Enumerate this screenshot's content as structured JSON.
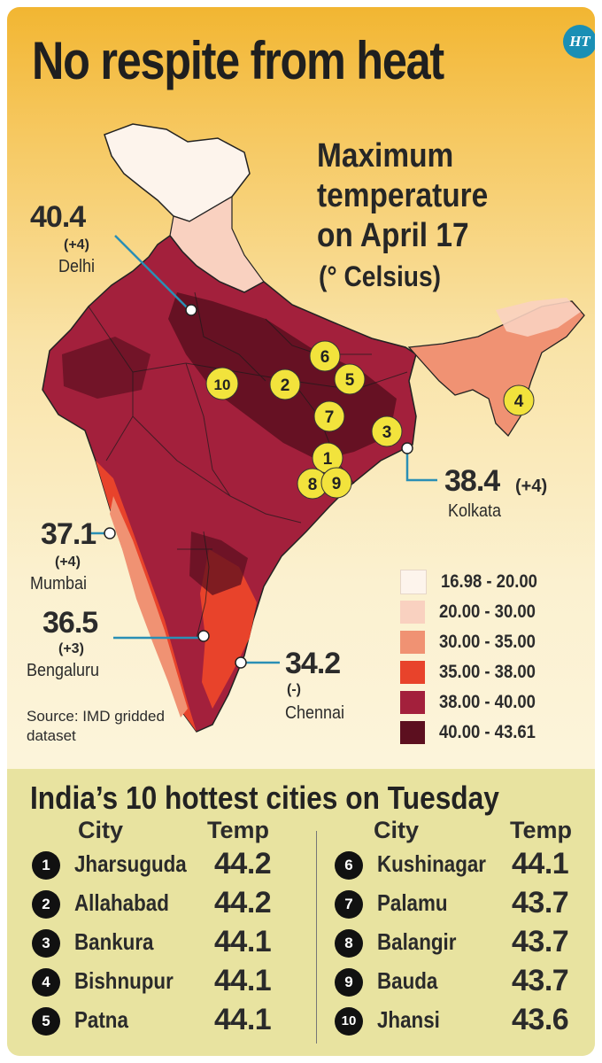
{
  "title": "No respite from heat",
  "logo": "HT",
  "subtitle": "Maximum\ntemperature\non April 17",
  "unit": "(° Celsius)",
  "cities": [
    {
      "value": "40.4",
      "change": "(+4)",
      "name": "Delhi"
    },
    {
      "value": "38.4",
      "change": "(+4)",
      "name": "Kolkata"
    },
    {
      "value": "37.1",
      "change": "(+4)",
      "name": "Mumbai"
    },
    {
      "value": "36.5",
      "change": "(+3)",
      "name": "Bengaluru"
    },
    {
      "value": "34.2",
      "change": "(-)",
      "name": "Chennai"
    }
  ],
  "markers": [
    "6",
    "5",
    "10",
    "2",
    "7",
    "3",
    "1",
    "8",
    "9",
    "4"
  ],
  "source": "Source: IMD gridded dataset",
  "legend": [
    {
      "label": "16.98 - 20.00",
      "color": "#fdf4ec"
    },
    {
      "label": "20.00 - 30.00",
      "color": "#f9d1c0"
    },
    {
      "label": "30.00 - 35.00",
      "color": "#f09273"
    },
    {
      "label": "35.00 - 38.00",
      "color": "#e8432b"
    },
    {
      "label": "38.00 - 40.00",
      "color": "#a3203c"
    },
    {
      "label": "40.00 - 43.61",
      "color": "#5c0f1f"
    }
  ],
  "table": {
    "title": "India’s 10 hottest cities on Tuesday",
    "col_city": "City",
    "col_temp": "Temp",
    "rows": [
      {
        "rank": "1",
        "city": "Jharsuguda",
        "temp": "44.2"
      },
      {
        "rank": "2",
        "city": "Allahabad",
        "temp": "44.2"
      },
      {
        "rank": "3",
        "city": "Bankura",
        "temp": "44.1"
      },
      {
        "rank": "4",
        "city": "Bishnupur",
        "temp": "44.1"
      },
      {
        "rank": "5",
        "city": "Patna",
        "temp": "44.1"
      },
      {
        "rank": "6",
        "city": "Kushinagar",
        "temp": "44.1"
      },
      {
        "rank": "7",
        "city": "Palamu",
        "temp": "43.7"
      },
      {
        "rank": "8",
        "city": "Balangir",
        "temp": "43.7"
      },
      {
        "rank": "9",
        "city": "Bauda",
        "temp": "43.7"
      },
      {
        "rank": "10",
        "city": "Jhansi",
        "temp": "43.6"
      }
    ]
  }
}
